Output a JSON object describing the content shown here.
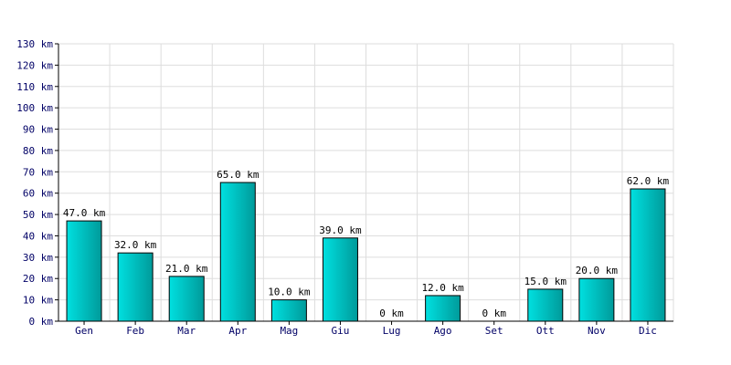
{
  "chart_data": {
    "type": "bar",
    "categories": [
      "Gen",
      "Feb",
      "Mar",
      "Apr",
      "Mag",
      "Giu",
      "Lug",
      "Ago",
      "Set",
      "Ott",
      "Nov",
      "Dic"
    ],
    "values": [
      47,
      32,
      21,
      65,
      10,
      39,
      0,
      12,
      0,
      15,
      20,
      62
    ],
    "data_labels": [
      "47.0 km",
      "32.0 km",
      "21.0 km",
      "65.0 km",
      "10.0 km",
      "39.0 km",
      "0 km",
      "12.0 km",
      "0 km",
      "15.0 km",
      "20.0 km",
      "62.0 km"
    ],
    "y_ticks": [
      "0 km",
      "10 km",
      "20 km",
      "30 km",
      "40 km",
      "50 km",
      "60 km",
      "70 km",
      "80 km",
      "90 km",
      "100 km",
      "110 km",
      "120 km",
      "130 km"
    ],
    "ylim": [
      0,
      130
    ],
    "grid": true,
    "bar_colors": [
      "#00e0e0",
      "#009a9a"
    ],
    "title": "",
    "xlabel": "",
    "ylabel": ""
  }
}
